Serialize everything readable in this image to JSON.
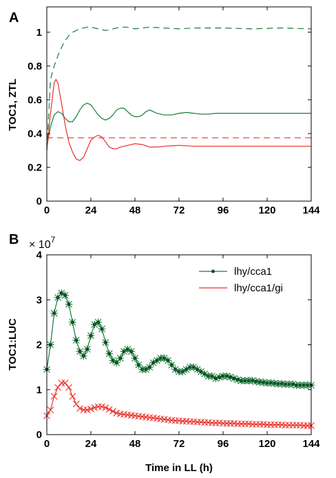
{
  "chart_data": [
    {
      "type": "line",
      "panel_label": "A",
      "title": "",
      "xlabel": "",
      "ylabel": "TOC1, ZTL",
      "xlim": [
        0,
        144
      ],
      "ylim": [
        0,
        1.15
      ],
      "x_ticks": [
        0,
        24,
        48,
        72,
        96,
        120,
        144
      ],
      "y_ticks": [
        0,
        0.2,
        0.4,
        0.6,
        0.8,
        1
      ],
      "y_tick_labels": [
        "0",
        "0.2",
        "0.4",
        "0.6",
        "0.8",
        "1"
      ],
      "grid": false,
      "legend": null,
      "series": [
        {
          "color": "#1a7a3c",
          "style": "dashed",
          "x": [
            0,
            2,
            4,
            6,
            8,
            10,
            12,
            14,
            16,
            18,
            20,
            22,
            24,
            28,
            32,
            36,
            40,
            44,
            48,
            56,
            64,
            72,
            80,
            96,
            112,
            128,
            144
          ],
          "y": [
            0.3,
            0.72,
            0.8,
            0.86,
            0.91,
            0.95,
            0.98,
            1.0,
            1.01,
            1.02,
            1.025,
            1.03,
            1.03,
            1.02,
            1.01,
            1.02,
            1.03,
            1.03,
            1.02,
            1.03,
            1.025,
            1.02,
            1.025,
            1.025,
            1.02,
            1.025,
            1.02
          ]
        },
        {
          "color": "#1a7a3c",
          "style": "solid",
          "x": [
            0,
            2,
            4,
            6,
            8,
            10,
            12,
            14,
            16,
            18,
            20,
            22,
            24,
            26,
            28,
            30,
            32,
            34,
            36,
            38,
            40,
            42,
            44,
            46,
            48,
            50,
            52,
            54,
            56,
            58,
            60,
            64,
            68,
            72,
            76,
            80,
            84,
            88,
            92,
            96,
            104,
            112,
            120,
            128,
            136,
            144
          ],
          "y": [
            0.32,
            0.44,
            0.51,
            0.53,
            0.52,
            0.49,
            0.47,
            0.47,
            0.5,
            0.54,
            0.57,
            0.58,
            0.57,
            0.54,
            0.51,
            0.49,
            0.48,
            0.49,
            0.51,
            0.54,
            0.55,
            0.55,
            0.53,
            0.51,
            0.5,
            0.5,
            0.51,
            0.53,
            0.54,
            0.53,
            0.52,
            0.51,
            0.51,
            0.52,
            0.525,
            0.52,
            0.515,
            0.515,
            0.52,
            0.52,
            0.52,
            0.52,
            0.52,
            0.52,
            0.52,
            0.52
          ]
        },
        {
          "color": "#e8302a",
          "style": "dashed",
          "x": [
            0,
            144
          ],
          "y": [
            0.375,
            0.375
          ]
        },
        {
          "color": "#e8302a",
          "style": "solid",
          "x": [
            0,
            2,
            4,
            5,
            6,
            8,
            10,
            12,
            14,
            16,
            18,
            20,
            22,
            24,
            26,
            28,
            30,
            32,
            34,
            36,
            38,
            40,
            44,
            48,
            52,
            56,
            60,
            64,
            72,
            80,
            96,
            112,
            128,
            144
          ],
          "y": [
            0.3,
            0.52,
            0.7,
            0.72,
            0.7,
            0.58,
            0.45,
            0.35,
            0.29,
            0.25,
            0.24,
            0.26,
            0.31,
            0.36,
            0.38,
            0.39,
            0.38,
            0.35,
            0.32,
            0.31,
            0.31,
            0.32,
            0.33,
            0.34,
            0.335,
            0.32,
            0.32,
            0.325,
            0.33,
            0.325,
            0.325,
            0.325,
            0.325,
            0.325
          ]
        }
      ]
    },
    {
      "type": "line",
      "panel_label": "B",
      "title": "",
      "xlabel": "Time in LL (h)",
      "ylabel": "TOC1:LUC",
      "multiplier_label": "× 10",
      "multiplier_exponent": "7",
      "xlim": [
        0,
        144
      ],
      "ylim": [
        0,
        4
      ],
      "x_ticks": [
        0,
        24,
        48,
        72,
        96,
        120,
        144
      ],
      "y_ticks": [
        0,
        1,
        2,
        3,
        4
      ],
      "y_tick_labels": [
        "0",
        "1",
        "2",
        "3",
        "4"
      ],
      "grid": false,
      "legend": "top-right",
      "series": [
        {
          "name": "lhy/cca1",
          "color": "#1a7a3c",
          "marker": "star",
          "x": [
            0,
            2,
            4,
            6,
            8,
            10,
            12,
            14,
            16,
            18,
            20,
            22,
            24,
            26,
            28,
            30,
            32,
            34,
            36,
            38,
            40,
            42,
            44,
            46,
            48,
            50,
            52,
            54,
            56,
            58,
            60,
            62,
            64,
            66,
            68,
            70,
            72,
            74,
            76,
            78,
            80,
            82,
            84,
            86,
            88,
            90,
            92,
            94,
            96,
            98,
            100,
            102,
            104,
            106,
            108,
            110,
            112,
            114,
            116,
            118,
            120,
            122,
            124,
            126,
            128,
            130,
            132,
            134,
            136,
            138,
            140,
            142,
            144
          ],
          "y": [
            1.45,
            2.0,
            2.7,
            3.05,
            3.15,
            3.1,
            2.9,
            2.5,
            2.1,
            1.85,
            1.75,
            1.9,
            2.2,
            2.45,
            2.5,
            2.35,
            2.05,
            1.8,
            1.65,
            1.6,
            1.7,
            1.85,
            1.9,
            1.85,
            1.7,
            1.55,
            1.45,
            1.45,
            1.5,
            1.6,
            1.65,
            1.7,
            1.7,
            1.65,
            1.55,
            1.45,
            1.4,
            1.4,
            1.45,
            1.5,
            1.5,
            1.45,
            1.4,
            1.35,
            1.3,
            1.3,
            1.25,
            1.28,
            1.3,
            1.3,
            1.28,
            1.25,
            1.22,
            1.2,
            1.2,
            1.2,
            1.2,
            1.18,
            1.17,
            1.16,
            1.15,
            1.15,
            1.14,
            1.13,
            1.13,
            1.12,
            1.12,
            1.12,
            1.1,
            1.1,
            1.1,
            1.1,
            1.1
          ]
        },
        {
          "name": "lhy/cca1/gi",
          "color": "#e8302a",
          "marker": "x",
          "x": [
            0,
            2,
            4,
            6,
            8,
            10,
            12,
            14,
            16,
            18,
            20,
            22,
            24,
            26,
            28,
            30,
            32,
            34,
            36,
            38,
            40,
            42,
            44,
            46,
            48,
            50,
            52,
            54,
            56,
            58,
            60,
            62,
            64,
            66,
            68,
            70,
            72,
            74,
            76,
            78,
            80,
            82,
            84,
            86,
            88,
            90,
            92,
            94,
            96,
            98,
            100,
            102,
            104,
            106,
            108,
            110,
            112,
            114,
            116,
            118,
            120,
            122,
            124,
            126,
            128,
            130,
            132,
            134,
            136,
            138,
            140,
            142,
            144
          ],
          "y": [
            0.42,
            0.55,
            0.85,
            1.05,
            1.15,
            1.15,
            1.05,
            0.85,
            0.68,
            0.58,
            0.55,
            0.55,
            0.57,
            0.6,
            0.62,
            0.62,
            0.6,
            0.56,
            0.52,
            0.48,
            0.46,
            0.45,
            0.44,
            0.43,
            0.42,
            0.41,
            0.4,
            0.39,
            0.38,
            0.37,
            0.36,
            0.35,
            0.34,
            0.33,
            0.32,
            0.31,
            0.31,
            0.3,
            0.3,
            0.29,
            0.29,
            0.28,
            0.28,
            0.27,
            0.27,
            0.26,
            0.26,
            0.26,
            0.25,
            0.25,
            0.25,
            0.25,
            0.24,
            0.24,
            0.24,
            0.24,
            0.23,
            0.23,
            0.23,
            0.23,
            0.22,
            0.22,
            0.22,
            0.22,
            0.22,
            0.21,
            0.21,
            0.21,
            0.21,
            0.21,
            0.2,
            0.2,
            0.2
          ]
        }
      ]
    }
  ]
}
